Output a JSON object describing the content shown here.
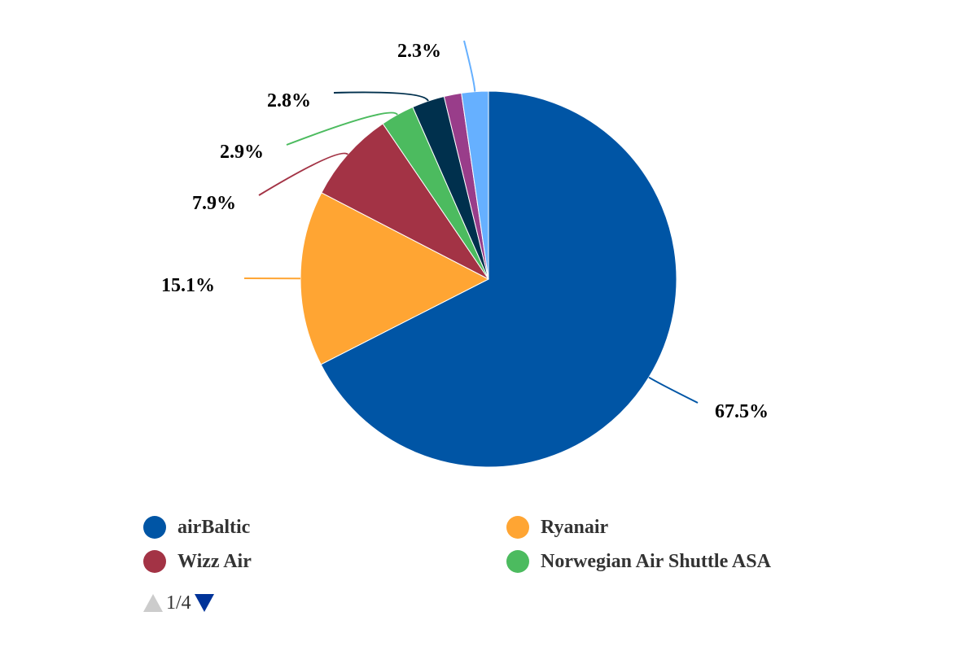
{
  "chart_data": {
    "type": "pie",
    "slices": [
      {
        "name": "airBaltic",
        "value": 67.5,
        "label": "67.5%",
        "color": "#0055a5"
      },
      {
        "name": "Ryanair",
        "value": 15.1,
        "label": "15.1%",
        "color": "#ffa533"
      },
      {
        "name": "Wizz Air",
        "value": 7.9,
        "label": "7.9%",
        "color": "#a33345"
      },
      {
        "name": "Norwegian Air Shuttle ASA",
        "value": 2.9,
        "label": "2.9%",
        "color": "#4cbb5f"
      },
      {
        "name": "",
        "value": 2.8,
        "label": "2.8%",
        "color": "#00304d"
      },
      {
        "name": "",
        "value": 1.5,
        "label": "",
        "color": "#993d8a"
      },
      {
        "name": "",
        "value": 2.3,
        "label": "2.3%",
        "color": "#66b0ff"
      }
    ],
    "legend_placement": "bottom"
  },
  "legend": {
    "items": [
      {
        "label": "airBaltic",
        "color": "#0055a5"
      },
      {
        "label": "Ryanair",
        "color": "#ffa533"
      },
      {
        "label": "Wizz Air",
        "color": "#a33345"
      },
      {
        "label": "Norwegian Air Shuttle ASA",
        "color": "#4cbb5f"
      }
    ],
    "pager": {
      "text": "1/4",
      "up_icon": "triangle-up-icon",
      "down_icon": "triangle-down-icon",
      "up_color": "#cccccc",
      "down_color": "#003399"
    }
  }
}
